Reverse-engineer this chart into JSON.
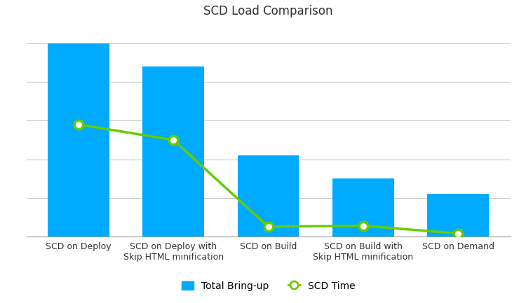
{
  "title": "SCD Load Comparison",
  "categories": [
    "SCD on Deploy",
    "SCD on Deploy with\nSkip HTML minification",
    "SCD on Build",
    "SCD on Build with\nSkip HTML minification",
    "SCD on Demand"
  ],
  "bar_values": [
    100,
    88,
    42,
    30,
    22
  ],
  "line_values": [
    58,
    50,
    5,
    5.5,
    1.5
  ],
  "bar_color": "#00AAFF",
  "line_color": "#66CC00",
  "marker_facecolor": "white",
  "marker_edgecolor": "#66CC00",
  "background_color": "#ffffff",
  "grid_color": "#cccccc",
  "title_fontsize": 12,
  "tick_fontsize": 9,
  "legend_fontsize": 10,
  "bar_width": 0.65,
  "ylim": [
    0,
    110
  ],
  "legend_labels": [
    "Total Bring-up",
    "SCD Time"
  ]
}
